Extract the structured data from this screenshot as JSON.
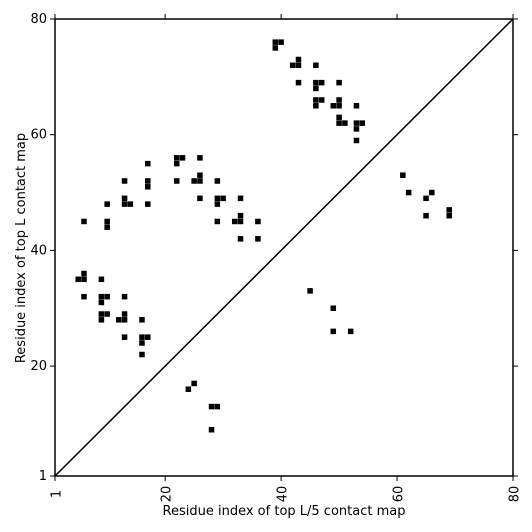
{
  "chart_data": {
    "type": "scatter",
    "marker": "square",
    "xlabel": "Residue index of top L/5 contact map",
    "ylabel": "Residue index of top L contact map",
    "xlim": [
      1,
      80
    ],
    "ylim": [
      1,
      80
    ],
    "xticks": [
      1,
      20,
      40,
      60,
      80
    ],
    "xtick_labels": [
      "1",
      "20",
      "40",
      "60",
      "80"
    ],
    "yticks": [
      1,
      20,
      40,
      60,
      80
    ],
    "ytick_labels": [
      "1",
      "20",
      "40",
      "60",
      "80"
    ],
    "diagonal": true,
    "grid": false,
    "colors": {
      "marker": "#000000",
      "axes": "#000000",
      "background": "#ffffff"
    },
    "upper_triangle_points": [
      [
        39,
        75
      ],
      [
        39,
        76
      ],
      [
        40,
        76
      ],
      [
        42,
        72
      ],
      [
        43,
        72
      ],
      [
        43,
        73
      ],
      [
        46,
        72
      ],
      [
        43,
        69
      ],
      [
        46,
        68
      ],
      [
        46,
        69
      ],
      [
        47,
        69
      ],
      [
        50,
        69
      ],
      [
        46,
        65
      ],
      [
        46,
        66
      ],
      [
        47,
        66
      ],
      [
        49,
        65
      ],
      [
        50,
        65
      ],
      [
        50,
        66
      ],
      [
        53,
        65
      ],
      [
        50,
        62
      ],
      [
        50,
        63
      ],
      [
        51,
        62
      ],
      [
        53,
        61
      ],
      [
        53,
        62
      ],
      [
        54,
        62
      ],
      [
        53,
        59
      ],
      [
        6,
        45
      ],
      [
        10,
        44
      ],
      [
        10,
        45
      ],
      [
        10,
        48
      ],
      [
        13,
        48
      ],
      [
        13,
        49
      ],
      [
        14,
        48
      ],
      [
        13,
        52
      ],
      [
        17,
        48
      ],
      [
        17,
        51
      ],
      [
        17,
        52
      ],
      [
        17,
        55
      ],
      [
        22,
        52
      ],
      [
        22,
        55
      ],
      [
        22,
        56
      ],
      [
        23,
        56
      ],
      [
        25,
        52
      ],
      [
        26,
        52
      ],
      [
        26,
        53
      ],
      [
        26,
        56
      ],
      [
        26,
        49
      ],
      [
        29,
        52
      ],
      [
        29,
        48
      ],
      [
        29,
        49
      ],
      [
        30,
        49
      ],
      [
        29,
        45
      ],
      [
        32,
        45
      ],
      [
        33,
        45
      ],
      [
        33,
        46
      ],
      [
        33,
        49
      ],
      [
        33,
        42
      ],
      [
        36,
        42
      ],
      [
        36,
        45
      ],
      [
        6,
        35
      ],
      [
        5,
        35
      ],
      [
        6,
        36
      ],
      [
        9,
        35
      ],
      [
        6,
        32
      ],
      [
        9,
        31
      ],
      [
        9,
        32
      ],
      [
        10,
        32
      ],
      [
        13,
        32
      ],
      [
        9,
        28
      ],
      [
        9,
        29
      ],
      [
        10,
        29
      ],
      [
        12,
        28
      ],
      [
        13,
        28
      ],
      [
        13,
        29
      ],
      [
        13,
        25
      ],
      [
        16,
        25
      ],
      [
        17,
        25
      ],
      [
        16,
        24
      ],
      [
        16,
        28
      ],
      [
        16,
        22
      ]
    ],
    "lower_triangle_points": [
      [
        61,
        53
      ],
      [
        62,
        50
      ],
      [
        65,
        49
      ],
      [
        66,
        50
      ],
      [
        65,
        46
      ],
      [
        69,
        46
      ],
      [
        69,
        47
      ],
      [
        45,
        33
      ],
      [
        49,
        30
      ],
      [
        49,
        26
      ],
      [
        52,
        26
      ],
      [
        24,
        16
      ],
      [
        25,
        17
      ],
      [
        28,
        13
      ],
      [
        29,
        13
      ],
      [
        28,
        9
      ]
    ]
  }
}
